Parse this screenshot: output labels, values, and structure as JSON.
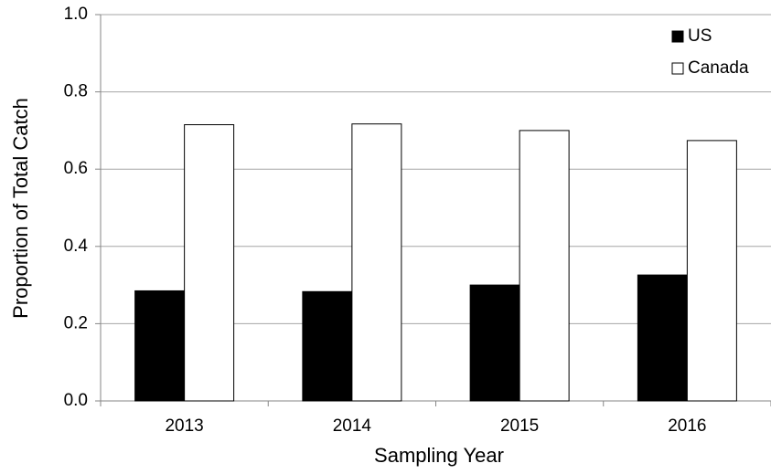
{
  "chart_data": {
    "type": "bar",
    "x_label": "Sampling Year",
    "y_label": "Proportion of Total Catch",
    "categories": [
      "2013",
      "2014",
      "2015",
      "2016"
    ],
    "series": [
      {
        "name": "US",
        "color": "#000000",
        "values": [
          0.285,
          0.283,
          0.3,
          0.326
        ]
      },
      {
        "name": "Canada",
        "color": "#ffffff",
        "values": [
          0.715,
          0.717,
          0.7,
          0.674
        ]
      }
    ],
    "ylim": [
      0,
      1
    ],
    "yticks": [
      {
        "value": 0,
        "label": "0.0"
      },
      0.2,
      0.4,
      0.6,
      0.8,
      {
        "value": 1,
        "label": "1.0"
      }
    ],
    "grid": true,
    "legend": "upper right"
  }
}
